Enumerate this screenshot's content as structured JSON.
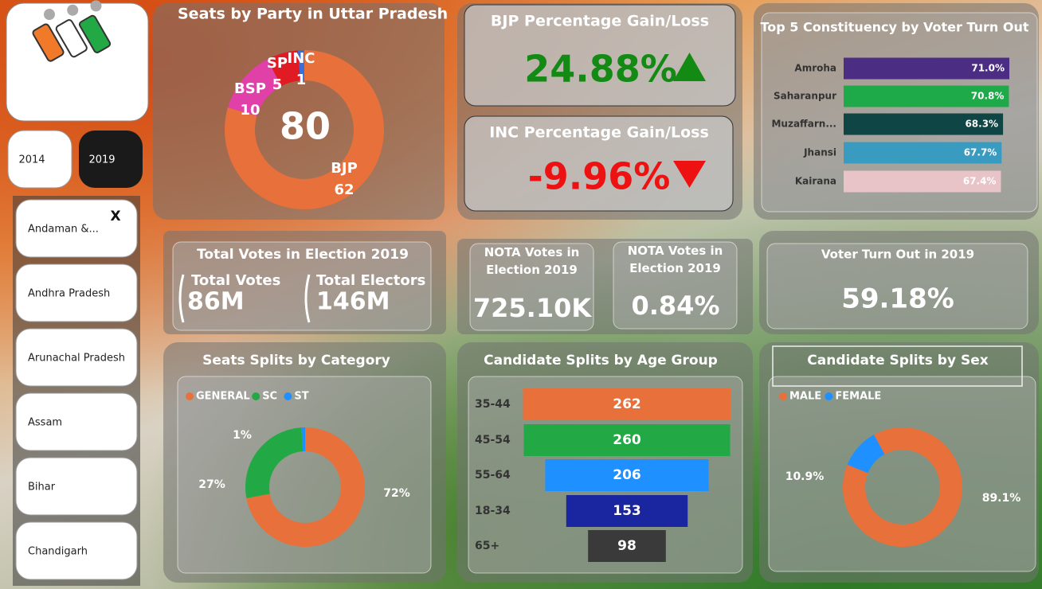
{
  "sidebar": {
    "years": [
      "2014",
      "2019"
    ],
    "selected_year": "2019",
    "clear": "X",
    "states": [
      "Andaman &...",
      "Andhra Pradesh",
      "Arunachal Pradesh",
      "Assam",
      "Bihar",
      "Chandigarh"
    ]
  },
  "kpis": {
    "bjp": {
      "title": "BJP Percentage Gain/Loss",
      "value": "24.88%",
      "color": "#138a13"
    },
    "inc": {
      "title": "INC Percentage Gain/Loss",
      "value": "-9.96%",
      "color": "#ee1111"
    }
  },
  "cards": {
    "votes": {
      "title": "Total Votes in Election 2019",
      "items": [
        {
          "label": "Total Votes",
          "value": "86M"
        },
        {
          "label": "Total Electors",
          "value": "146M"
        }
      ]
    },
    "nota_votes": {
      "title": "NOTA Votes in Election 2019",
      "value": "725.10K"
    },
    "nota_pct": {
      "title": "NOTA Votes in Election 2019",
      "value": "0.84%"
    },
    "turnout": {
      "title": "Voter Turn Out in 2019",
      "value": "59.18%"
    }
  },
  "chart_data": [
    {
      "type": "donut",
      "title": "Seats by Party in Uttar Pradesh",
      "total": 80,
      "categories": [
        "BJP",
        "BSP",
        "SP",
        "INC"
      ],
      "values": [
        62,
        10,
        5,
        1
      ],
      "colors": [
        "#e8703a",
        "#e040a8",
        "#e01b24",
        "#3a6fd8"
      ]
    },
    {
      "type": "hbar",
      "title": "Top 5 Constituency by Voter Turn Out",
      "categories": [
        "Amroha",
        "Saharanpur",
        "Muzaffarn...",
        "Jhansi",
        "Kairana"
      ],
      "values": [
        71.0,
        70.8,
        68.3,
        67.7,
        67.4
      ],
      "value_labels": [
        "71.0%",
        "70.8%",
        "68.3%",
        "67.7%",
        "67.4%"
      ],
      "colors": [
        "#4b2e83",
        "#1faa4a",
        "#0f4545",
        "#3a9bc1",
        "#e8c4c8"
      ]
    },
    {
      "type": "donut",
      "title": "Seats Splits by Category",
      "categories": [
        "GENERAL",
        "SC",
        "ST"
      ],
      "values": [
        72,
        27,
        1
      ],
      "value_labels": [
        "72%",
        "27%",
        "1%"
      ],
      "colors": [
        "#e8703a",
        "#22a845",
        "#1e90ff"
      ],
      "legend": "top-left"
    },
    {
      "type": "funnel",
      "title": "Candidate Splits by Age Group",
      "categories": [
        "35-44",
        "45-54",
        "55-64",
        "18-34",
        "65+"
      ],
      "values": [
        262,
        260,
        206,
        153,
        98
      ],
      "colors": [
        "#e8703a",
        "#22a845",
        "#1e90ff",
        "#1a25a0",
        "#3a3a3a"
      ]
    },
    {
      "type": "donut",
      "title": "Candidate Splits by Sex",
      "categories": [
        "MALE",
        "FEMALE"
      ],
      "values": [
        89.1,
        10.9
      ],
      "value_labels": [
        "89.1%",
        "10.9%"
      ],
      "colors": [
        "#e8703a",
        "#1e90ff"
      ],
      "legend": "top-left"
    }
  ]
}
